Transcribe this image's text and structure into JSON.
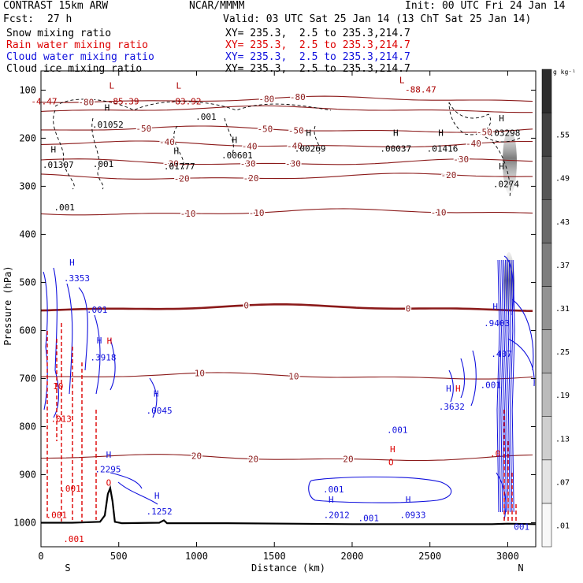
{
  "header": {
    "model": "CONTRAST 15km ARW",
    "center": "NCAR/MMMM",
    "init": "Init: 00 UTC Fri 24 Jan 14",
    "fcst_label": "Fcst:",
    "fcst_value": "27 h",
    "valid": "Valid: 03 UTC Sat 25 Jan 14 (13 ChT Sat 25 Jan 14)"
  },
  "fields": [
    {
      "name": "Snow mixing ratio",
      "xy": "XY= 235.3,  2.5 to 235.3,214.7",
      "color": "#000000"
    },
    {
      "name": "Rain water mixing ratio",
      "xy": "XY= 235.3,  2.5 to 235.3,214.7",
      "color": "#dd0000"
    },
    {
      "name": "Cloud water mixing ratio",
      "xy": "XY= 235.3,  2.5 to 235.3,214.7",
      "color": "#1010dd"
    },
    {
      "name": "Cloud ice mixing ratio",
      "xy": "XY= 235.3,  2.5 to 235.3,214.7",
      "color": "#000000"
    }
  ],
  "chart_data": {
    "type": "cross-section contour",
    "xlabel": "Distance (km)",
    "ylabel": "Pressure (hPa)",
    "xlim": [
      0,
      3180
    ],
    "ylim": [
      1050,
      60
    ],
    "x_ticks": [
      0,
      500,
      1000,
      1500,
      2000,
      2500,
      3000
    ],
    "y_ticks": [
      100,
      200,
      300,
      400,
      500,
      600,
      700,
      800,
      900,
      1000
    ],
    "endpoint_labels": [
      "S",
      "N"
    ],
    "colorbar": {
      "unit": "g kg⁻¹",
      "levels": [
        ".01",
        ".07",
        ".13",
        ".19",
        ".25",
        ".31",
        ".37",
        ".43",
        ".49",
        ".55"
      ]
    },
    "isotherm_labels_c": [
      -80,
      -50,
      -40,
      -30,
      -20,
      -10,
      0,
      10,
      20
    ],
    "isotherms": [
      {
        "c": -80,
        "p": 120,
        "labels": [
          {
            "x": 290,
            "t": "-80"
          },
          {
            "x": 1450,
            "t": "-80"
          },
          {
            "x": 1650,
            "t": "-80"
          }
        ]
      },
      {
        "c": -60,
        "p": 140,
        "labels": []
      },
      {
        "c": -50,
        "p": 182,
        "labels": [
          {
            "x": 660,
            "t": "-50"
          },
          {
            "x": 1440,
            "t": "-50"
          },
          {
            "x": 1640,
            "t": "-50"
          },
          {
            "x": 2850,
            "t": "-50"
          }
        ]
      },
      {
        "c": -40,
        "p": 213,
        "labels": [
          {
            "x": 810,
            "t": "-40"
          },
          {
            "x": 1340,
            "t": "-40"
          },
          {
            "x": 1630,
            "t": "-40"
          },
          {
            "x": 2780,
            "t": "-40"
          }
        ]
      },
      {
        "c": -30,
        "p": 250,
        "labels": [
          {
            "x": 835,
            "t": "-30"
          },
          {
            "x": 1330,
            "t": "-30"
          },
          {
            "x": 1620,
            "t": "-30"
          },
          {
            "x": 2700,
            "t": "-30"
          }
        ]
      },
      {
        "c": -20,
        "p": 280,
        "labels": [
          {
            "x": 905,
            "t": "-20"
          },
          {
            "x": 1350,
            "t": "-20"
          },
          {
            "x": 2620,
            "t": "-20"
          }
        ]
      },
      {
        "c": -10,
        "p": 354,
        "labels": [
          {
            "x": 945,
            "t": "-10"
          },
          {
            "x": 1385,
            "t": "-10"
          },
          {
            "x": 2555,
            "t": "-10"
          }
        ]
      },
      {
        "c": 0,
        "p": 553,
        "labels": [
          {
            "x": 1320,
            "t": "0"
          },
          {
            "x": 2360,
            "t": "0"
          }
        ]
      },
      {
        "c": 10,
        "p": 695,
        "labels": [
          {
            "x": 1020,
            "t": "10"
          },
          {
            "x": 1625,
            "t": "10"
          }
        ]
      },
      {
        "c": 20,
        "p": 865,
        "labels": [
          {
            "x": 1000,
            "t": "20"
          },
          {
            "x": 1365,
            "t": "20"
          },
          {
            "x": 1975,
            "t": "20"
          }
        ]
      }
    ],
    "annotations": [
      {
        "x": 20,
        "p": 130,
        "t": "-4.47",
        "color": "#aa0000"
      },
      {
        "x": 455,
        "p": 97,
        "t": "L",
        "color": "#aa0000"
      },
      {
        "x": 530,
        "p": 130,
        "t": "-85.39",
        "color": "#aa0000"
      },
      {
        "x": 885,
        "p": 97,
        "t": "L",
        "color": "#aa0000"
      },
      {
        "x": 930,
        "p": 130,
        "t": "-83.92",
        "color": "#aa0000"
      },
      {
        "x": 2320,
        "p": 85,
        "t": "L",
        "color": "#aa0000"
      },
      {
        "x": 2440,
        "p": 105,
        "t": "-88.47",
        "color": "#aa0000"
      },
      {
        "x": 425,
        "p": 143,
        "t": "H",
        "color": "#000000"
      },
      {
        "x": 430,
        "p": 178,
        "t": ".01052",
        "color": "#000000"
      },
      {
        "x": 1060,
        "p": 162,
        "t": ".001",
        "color": "#000000"
      },
      {
        "x": 1245,
        "p": 210,
        "t": "H",
        "color": "#000000"
      },
      {
        "x": 1260,
        "p": 242,
        "t": ".00601",
        "color": "#000000"
      },
      {
        "x": 870,
        "p": 233,
        "t": "H",
        "color": "#000000"
      },
      {
        "x": 890,
        "p": 265,
        "t": ".01777",
        "color": "#000000"
      },
      {
        "x": 1720,
        "p": 195,
        "t": "H",
        "color": "#000000"
      },
      {
        "x": 1730,
        "p": 228,
        "t": ".00269",
        "color": "#000000"
      },
      {
        "x": 2280,
        "p": 195,
        "t": "H",
        "color": "#000000"
      },
      {
        "x": 2280,
        "p": 228,
        "t": ".00037",
        "color": "#000000"
      },
      {
        "x": 2570,
        "p": 195,
        "t": "H",
        "color": "#000000"
      },
      {
        "x": 2580,
        "p": 228,
        "t": ".01416",
        "color": "#000000"
      },
      {
        "x": 2960,
        "p": 165,
        "t": "H",
        "color": "#000000"
      },
      {
        "x": 2980,
        "p": 195,
        "t": ".03298",
        "color": "#000000"
      },
      {
        "x": 80,
        "p": 230,
        "t": "H",
        "color": "#000000"
      },
      {
        "x": 110,
        "p": 262,
        "t": ".01307",
        "color": "#000000"
      },
      {
        "x": 400,
        "p": 260,
        "t": ".001",
        "color": "#000000"
      },
      {
        "x": 150,
        "p": 350,
        "t": ".001",
        "color": "#000000"
      },
      {
        "x": 2960,
        "p": 265,
        "t": "H",
        "color": "#000000"
      },
      {
        "x": 2990,
        "p": 302,
        "t": ".0274",
        "color": "#000000"
      },
      {
        "x": 200,
        "p": 465,
        "t": "H",
        "color": "#1010dd"
      },
      {
        "x": 230,
        "p": 498,
        "t": ".3353",
        "color": "#1010dd"
      },
      {
        "x": 360,
        "p": 563,
        "t": ".001",
        "color": "#1010dd"
      },
      {
        "x": 375,
        "p": 627,
        "t": "H",
        "color": "#1010dd"
      },
      {
        "x": 400,
        "p": 662,
        "t": ".3918",
        "color": "#1010dd"
      },
      {
        "x": 440,
        "p": 628,
        "t": "H",
        "color": "#dd0000"
      },
      {
        "x": 740,
        "p": 738,
        "t": "H",
        "color": "#1010dd"
      },
      {
        "x": 760,
        "p": 773,
        "t": ".0045",
        "color": "#1010dd"
      },
      {
        "x": 2920,
        "p": 557,
        "t": "H",
        "color": "#1010dd"
      },
      {
        "x": 2930,
        "p": 591,
        "t": ".9403",
        "color": "#1010dd"
      },
      {
        "x": 2960,
        "p": 655,
        "t": ".407",
        "color": "#1010dd"
      },
      {
        "x": 2890,
        "p": 720,
        "t": ".001",
        "color": "#1010dd"
      },
      {
        "x": 2620,
        "p": 727,
        "t": "H",
        "color": "#1010dd"
      },
      {
        "x": 2640,
        "p": 765,
        "t": ".3632",
        "color": "#1010dd"
      },
      {
        "x": 2680,
        "p": 727,
        "t": "H",
        "color": "#dd0000"
      },
      {
        "x": 2290,
        "p": 813,
        "t": ".001",
        "color": "#1010dd"
      },
      {
        "x": 2260,
        "p": 853,
        "t": "H",
        "color": "#dd0000"
      },
      {
        "x": 2250,
        "p": 880,
        "t": "O",
        "color": "#dd0000"
      },
      {
        "x": 435,
        "p": 865,
        "t": "H",
        "color": "#1010dd"
      },
      {
        "x": 430,
        "p": 895,
        "t": ".2295",
        "color": "#1010dd"
      },
      {
        "x": 435,
        "p": 923,
        "t": "O",
        "color": "#dd0000"
      },
      {
        "x": 745,
        "p": 950,
        "t": "H",
        "color": "#1010dd"
      },
      {
        "x": 760,
        "p": 983,
        "t": ".1252",
        "color": "#1010dd"
      },
      {
        "x": 1880,
        "p": 937,
        "t": ".001",
        "color": "#1010dd"
      },
      {
        "x": 1865,
        "p": 958,
        "t": "H",
        "color": "#1010dd"
      },
      {
        "x": 1900,
        "p": 990,
        "t": ".2012",
        "color": "#1010dd"
      },
      {
        "x": 2105,
        "p": 997,
        "t": ".001",
        "color": "#1010dd"
      },
      {
        "x": 2360,
        "p": 958,
        "t": "H",
        "color": "#1010dd"
      },
      {
        "x": 2390,
        "p": 990,
        "t": ".0933",
        "color": "#1010dd"
      },
      {
        "x": 110,
        "p": 722,
        "t": "10",
        "color": "#dd0000"
      },
      {
        "x": 130,
        "p": 790,
        "t": ".013",
        "color": "#dd0000"
      },
      {
        "x": 190,
        "p": 935,
        "t": ".001",
        "color": "#dd0000"
      },
      {
        "x": 100,
        "p": 990,
        "t": ".001",
        "color": "#dd0000"
      },
      {
        "x": 210,
        "p": 1040,
        "t": ".001",
        "color": "#dd0000"
      },
      {
        "x": 2920,
        "p": 862,
        "t": ".0",
        "color": "#dd0000"
      },
      {
        "x": 3090,
        "p": 1015,
        "t": "001",
        "color": "#1010dd"
      }
    ]
  }
}
